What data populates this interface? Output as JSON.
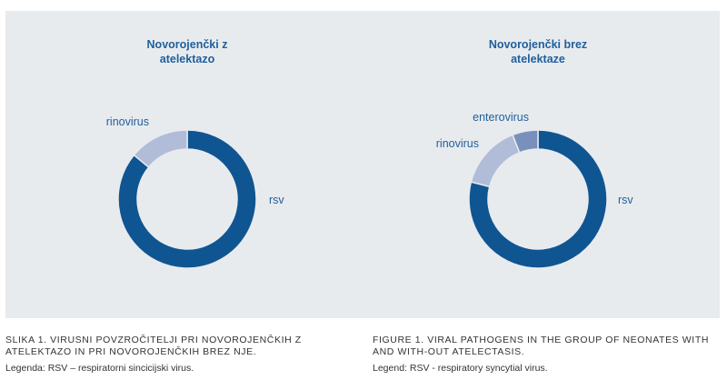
{
  "colors": {
    "rsv": "#0f5592",
    "rinovirus": "#b1bcd8",
    "enterovirus": "#7990bc",
    "label": "#1f5f9d",
    "panel": "#e8ebee"
  },
  "chart_data": [
    {
      "type": "pie",
      "title": "Novorojenčki z\natelektazo",
      "slices": [
        {
          "label": "rsv",
          "value": 86
        },
        {
          "label": "rinovirus",
          "value": 14
        }
      ]
    },
    {
      "type": "pie",
      "title": "Novorojenčki brez\natelektaze",
      "slices": [
        {
          "label": "rsv",
          "value": 79
        },
        {
          "label": "rinovirus",
          "value": 15
        },
        {
          "label": "enterovirus",
          "value": 6
        }
      ]
    }
  ],
  "captions": {
    "slo": {
      "title": "SLIKA 1. VIRUSNI POVZROČITELJI PRI NOVOROJENČKIH Z ATELEKTAZO IN PRI NOVOROJENČKIH BREZ NJE.",
      "legend": "Legenda: RSV – respiratorni sincicijski virus."
    },
    "eng": {
      "title": "FIGURE 1. VIRAL PATHOGENS IN THE GROUP OF NEONATES WITH AND WITH-OUT ATELECTASIS.",
      "legend": "Legend: RSV - respiratory syncytial virus."
    }
  }
}
